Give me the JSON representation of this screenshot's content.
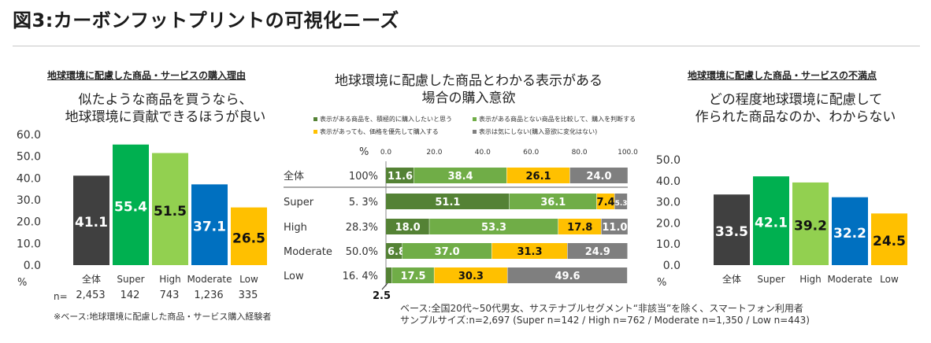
{
  "title": "図3:カーボンフットプリントの可視化ニーズ",
  "colors": {
    "dark": "#404040",
    "super": "#00b050",
    "high": "#92d050",
    "moderate": "#0070c0",
    "low": "#ffc000",
    "gray": "#7f7f7f",
    "deep": "#548235",
    "mid": "#70ad47"
  },
  "left": {
    "subtitle": "地球環境に配慮した商品・サービスの購入理由",
    "heading_line1": "似たような商品を買うなら、",
    "heading_line2": "地球環境に貢献できるほうが良い",
    "n_label": "n=",
    "n_values": [
      "2,453",
      "142",
      "743",
      "1,236",
      "335"
    ],
    "footnote": "※ベース:地球環境に配慮した商品・サービス購入経験者"
  },
  "center": {
    "heading_line1": "地球環境に配慮した商品とわかる表示がある",
    "heading_line2": "場合の購入意欲",
    "legend": [
      "表示がある商品を、積極的に購入したいと思う",
      "表示がある商品とない商品を比較して、購入を判断する",
      "表示があっても、価格を優先して購入する",
      "表示は気にしない(購入意欲に変化はない)"
    ],
    "pct_header": "%",
    "row_pcts": [
      "100%",
      "5. 3%",
      "28.3%",
      "50.0%",
      "16. 4%"
    ],
    "extra_label": "2.5",
    "note_line1": "ベース:全国20代~50代男女、サステナブルセグメント“非該当”を除く、スマートフォン利用者",
    "note_line2": "サンプルサイズ:n=2,697 (Super n=142 / High n=762 / Moderate n=1,350 / Low n=443)"
  },
  "right": {
    "subtitle": "地球環境に配慮した商品・サービスの不満点",
    "heading_line1": "どの程度地球環境に配慮して",
    "heading_line2": "作られた商品なのか、わからない"
  },
  "chart_data": [
    {
      "type": "bar",
      "title": "似たような商品を買うなら、地球環境に貢献できるほうが良い",
      "categories": [
        "全体",
        "Super",
        "High",
        "Moderate",
        "Low"
      ],
      "values": [
        41.1,
        55.4,
        51.5,
        37.1,
        26.5
      ],
      "ylabel": "%",
      "ylim": [
        0,
        60
      ],
      "yticks": [
        "60.0",
        "50.0",
        "40.0",
        "30.0",
        "20.0",
        "10.0",
        "0.0"
      ]
    },
    {
      "type": "bar",
      "title": "地球環境に配慮した商品とわかる表示がある場合の購入意欲",
      "orientation": "horizontal-stacked",
      "categories": [
        "全体",
        "Super",
        "High",
        "Moderate",
        "Low"
      ],
      "xlim": [
        0,
        100
      ],
      "xticks": [
        "0.0",
        "20.0",
        "40.0",
        "60.0",
        "80.0",
        "100.0"
      ],
      "series": [
        {
          "name": "表示がある商品を、積極的に購入したいと思う",
          "values": [
            11.6,
            51.1,
            18.0,
            6.8,
            2.5
          ],
          "labels": [
            "11.6",
            "51.1",
            "18.0",
            "6.8",
            ""
          ]
        },
        {
          "name": "表示がある商品とない商品を比較して、購入を判断する",
          "values": [
            38.4,
            36.1,
            53.3,
            37.0,
            17.5
          ],
          "labels": [
            "38.4",
            "36.1",
            "53.3",
            "37.0",
            "17.5"
          ]
        },
        {
          "name": "表示があっても、価格を優先して購入する",
          "values": [
            26.1,
            7.4,
            17.8,
            31.3,
            30.3
          ],
          "labels": [
            "26.1",
            "7.4",
            "17.8",
            "31.3",
            "30.3"
          ]
        },
        {
          "name": "表示は気にしない(購入意欲に変化はない)",
          "values": [
            24.0,
            5.3,
            11.0,
            24.9,
            49.6
          ],
          "labels": [
            "24.0",
            "5.3",
            "11.0",
            "24.9",
            "49.6"
          ]
        }
      ]
    },
    {
      "type": "bar",
      "title": "どの程度地球環境に配慮して作られた商品なのか、わからない",
      "categories": [
        "全体",
        "Super",
        "High",
        "Moderate",
        "Low"
      ],
      "values": [
        33.5,
        42.1,
        39.2,
        32.2,
        24.5
      ],
      "ylabel": "%",
      "ylim": [
        0,
        50
      ],
      "yticks": [
        "50.0",
        "40.0",
        "30.0",
        "20.0",
        "10.0",
        "0.0"
      ]
    }
  ]
}
